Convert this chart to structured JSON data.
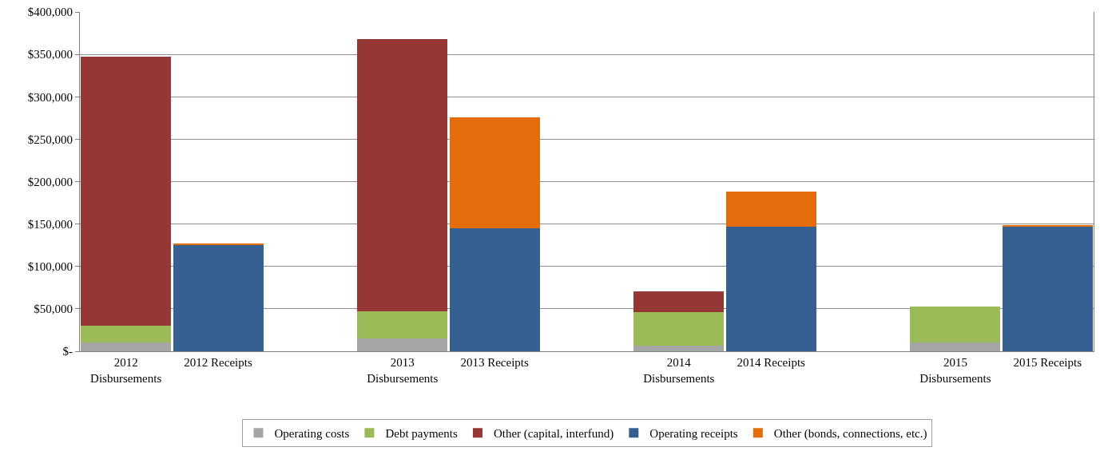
{
  "chart_data": {
    "type": "bar",
    "stacked": true,
    "categories": [
      "2012 Disbursements",
      "2012 Receipts",
      null,
      "2013 Disbursements",
      "2013 Receipts",
      null,
      "2014 Disbursements",
      "2014 Receipts",
      null,
      "2015 Disbursements",
      "2015 Receipts"
    ],
    "series": [
      {
        "name": "Operating costs",
        "color": "#a5a5a5",
        "values": [
          10000,
          null,
          null,
          15000,
          null,
          null,
          7000,
          null,
          null,
          10000,
          null
        ]
      },
      {
        "name": "Debt payments",
        "color": "#9bbb59",
        "values": [
          20000,
          null,
          null,
          32000,
          null,
          null,
          39000,
          null,
          null,
          43000,
          null
        ]
      },
      {
        "name": "Other (capital, interfund)",
        "color": "#953735",
        "values": [
          317000,
          null,
          null,
          321000,
          null,
          null,
          25000,
          null,
          null,
          null,
          null
        ]
      },
      {
        "name": "Operating receipts",
        "color": "#376092",
        "values": [
          null,
          125000,
          null,
          null,
          145000,
          null,
          null,
          147000,
          null,
          null,
          147000
        ]
      },
      {
        "name": "Other (bonds, connections, etc.)",
        "color": "#e46c0a",
        "values": [
          null,
          2000,
          null,
          null,
          131000,
          null,
          null,
          41000,
          null,
          null,
          2000
        ]
      }
    ],
    "ylim": [
      0,
      400000
    ],
    "yticks": [
      {
        "value": 0,
        "label": "$-"
      },
      {
        "value": 50000,
        "label": "$50,000"
      },
      {
        "value": 100000,
        "label": "$100,000"
      },
      {
        "value": 150000,
        "label": "$150,000"
      },
      {
        "value": 200000,
        "label": "$200,000"
      },
      {
        "value": 250000,
        "label": "$250,000"
      },
      {
        "value": 300000,
        "label": "$300,000"
      },
      {
        "value": 350000,
        "label": "$350,000"
      },
      {
        "value": 400000,
        "label": "$400,000"
      }
    ],
    "grid": "y",
    "legend": "bottom"
  }
}
